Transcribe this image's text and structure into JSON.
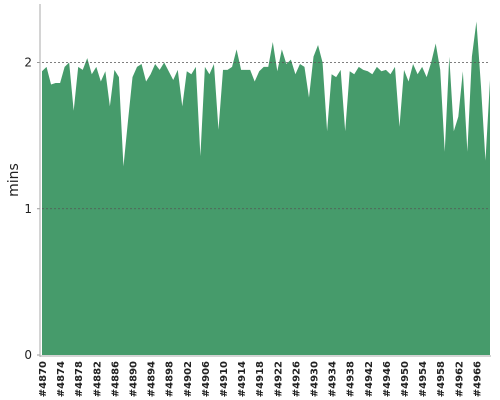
{
  "chart_data": {
    "type": "area",
    "ylabel": "mins",
    "color": "#469b6b",
    "grid": true,
    "ylim": [
      0,
      2.4
    ],
    "yticks": [
      0,
      1,
      2
    ],
    "categories": [
      "#4870",
      null,
      null,
      null,
      "#4874",
      null,
      null,
      null,
      "#4878",
      null,
      null,
      null,
      "#4882",
      null,
      null,
      null,
      "#4886",
      null,
      null,
      null,
      "#4890",
      null,
      null,
      null,
      "#4894",
      null,
      null,
      null,
      "#4898",
      null,
      null,
      null,
      "#4902",
      null,
      null,
      null,
      "#4906",
      null,
      null,
      null,
      "#4910",
      null,
      null,
      null,
      "#4914",
      null,
      null,
      null,
      "#4918",
      null,
      null,
      null,
      "#4922",
      null,
      null,
      null,
      "#4926",
      null,
      null,
      null,
      "#4930",
      null,
      null,
      null,
      "#4934",
      null,
      null,
      null,
      "#4938",
      null,
      null,
      null,
      "#4942",
      null,
      null,
      null,
      "#4946",
      null,
      null,
      null,
      "#4950",
      null,
      null,
      null,
      "#4954",
      null,
      null,
      null,
      "#4958",
      null,
      null,
      null,
      "#4962",
      null,
      null,
      null,
      "#4966",
      null,
      null,
      null
    ],
    "values": [
      1.94,
      1.97,
      1.85,
      1.86,
      1.86,
      1.97,
      2.0,
      1.67,
      1.97,
      1.95,
      2.03,
      1.92,
      1.97,
      1.87,
      1.94,
      1.7,
      1.95,
      1.9,
      1.29,
      1.6,
      1.9,
      1.97,
      1.99,
      1.87,
      1.92,
      1.99,
      1.95,
      2.0,
      1.94,
      1.88,
      1.95,
      1.7,
      1.94,
      1.92,
      1.97,
      1.36,
      1.97,
      1.92,
      1.99,
      1.54,
      1.95,
      1.95,
      1.97,
      2.09,
      1.95,
      1.95,
      1.95,
      1.87,
      1.94,
      1.97,
      1.97,
      2.14,
      1.94,
      2.09,
      1.99,
      2.02,
      1.92,
      1.99,
      1.97,
      1.76,
      2.04,
      2.12,
      2.0,
      1.53,
      1.92,
      1.9,
      1.95,
      1.53,
      1.94,
      1.92,
      1.97,
      1.95,
      1.94,
      1.92,
      1.97,
      1.94,
      1.95,
      1.92,
      1.97,
      1.56,
      1.95,
      1.87,
      1.99,
      1.92,
      1.97,
      1.9,
      2.0,
      2.13,
      1.95,
      1.39,
      2.04,
      1.53,
      1.63,
      1.94,
      1.39,
      2.04,
      2.28,
      1.84,
      1.33,
      1.88
    ]
  }
}
